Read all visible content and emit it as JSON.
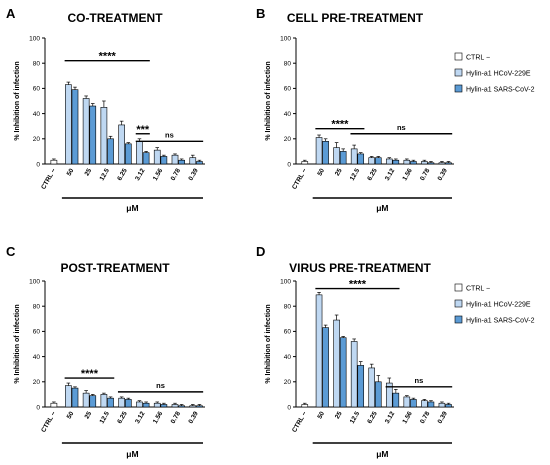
{
  "colors": {
    "ctrl": "#ffffff",
    "hcov": "#bfd8f2",
    "sars": "#5b9bd5",
    "stroke": "#000000"
  },
  "legend_labels": [
    "CTRL −",
    "Hylin-a1 HCoV-229E",
    "Hylin-a1 SARS-CoV-2"
  ],
  "chart_data": [
    {
      "type": "bar",
      "letter": "A",
      "title": "CO-TREATMENT",
      "ylabel": "% Inhibition of infection",
      "xlabel": "μM",
      "ylim": [
        0,
        100
      ],
      "yticks": [
        "0",
        "20",
        "40",
        "60",
        "80",
        "100"
      ],
      "categories": [
        "CTRL −",
        "50",
        "25",
        "12.5",
        "6.25",
        "3.12",
        "1.56",
        "0.78",
        "0.39"
      ],
      "ctrl_value": 3,
      "ctrl_err": 1,
      "series": [
        {
          "name": "Hylin-a1 HCoV-229E",
          "values": [
            null,
            63,
            52,
            45,
            31,
            18,
            11,
            7,
            5
          ],
          "errors": [
            null,
            2,
            2,
            5,
            3,
            2,
            2,
            1,
            2
          ]
        },
        {
          "name": "Hylin-a1 SARS-CoV-2",
          "values": [
            null,
            59,
            46,
            20,
            16,
            9,
            6,
            3,
            2
          ],
          "errors": [
            null,
            2,
            2,
            2,
            1,
            1,
            1,
            1,
            1
          ]
        }
      ],
      "brackets": [
        {
          "label": "****",
          "from": 1,
          "to": 5,
          "y": 82
        },
        {
          "label": "***",
          "from": 5,
          "to": 5,
          "y": 24
        },
        {
          "label": "ns",
          "from": 5,
          "to": 8,
          "y": 18
        }
      ],
      "legend": false
    },
    {
      "type": "bar",
      "letter": "B",
      "title": "CELL PRE-TREATMENT",
      "ylabel": "% Inhibition of infection",
      "xlabel": "μM",
      "ylim": [
        0,
        100
      ],
      "yticks": [
        "0",
        "20",
        "40",
        "60",
        "80",
        "100"
      ],
      "categories": [
        "CTRL −",
        "50",
        "25",
        "12.5",
        "6.25",
        "3.12",
        "1.56",
        "0.78",
        "0.39"
      ],
      "ctrl_value": 2,
      "ctrl_err": 1,
      "series": [
        {
          "name": "Hylin-a1 HCoV-229E",
          "values": [
            null,
            21,
            13,
            12,
            5,
            4,
            3,
            2,
            1
          ],
          "errors": [
            null,
            2,
            4,
            3,
            1,
            1,
            1,
            1,
            1
          ]
        },
        {
          "name": "Hylin-a1 SARS-CoV-2",
          "values": [
            null,
            18,
            10,
            8,
            5,
            3,
            2,
            1,
            1
          ],
          "errors": [
            null,
            2,
            2,
            1,
            1,
            1,
            1,
            1,
            1
          ]
        }
      ],
      "brackets": [
        {
          "label": "****",
          "from": 1,
          "to": 3,
          "y": 28
        },
        {
          "label": "ns",
          "from": 3,
          "to": 8,
          "y": 24
        }
      ],
      "legend": true
    },
    {
      "type": "bar",
      "letter": "C",
      "title": "POST-TREATMENT",
      "ylabel": "% Inhibition of infection",
      "xlabel": "μM",
      "ylim": [
        0,
        100
      ],
      "yticks": [
        "0",
        "20",
        "40",
        "60",
        "80",
        "100"
      ],
      "categories": [
        "CTRL −",
        "50",
        "25",
        "12.5",
        "6.25",
        "3.12",
        "1.56",
        "0.78",
        "0.39"
      ],
      "ctrl_value": 3,
      "ctrl_err": 1,
      "series": [
        {
          "name": "Hylin-a1 HCoV-229E",
          "values": [
            null,
            17,
            11,
            10,
            7,
            4,
            3,
            2,
            1
          ],
          "errors": [
            null,
            2,
            2,
            1,
            1,
            1,
            1,
            1,
            1
          ]
        },
        {
          "name": "Hylin-a1 SARS-CoV-2",
          "values": [
            null,
            15,
            9,
            7,
            6,
            3,
            2,
            1,
            1
          ],
          "errors": [
            null,
            1,
            1,
            1,
            1,
            1,
            1,
            1,
            1
          ]
        }
      ],
      "brackets": [
        {
          "label": "****",
          "from": 1,
          "to": 3,
          "y": 23
        },
        {
          "label": "ns",
          "from": 4,
          "to": 8,
          "y": 12
        }
      ],
      "legend": false
    },
    {
      "type": "bar",
      "letter": "D",
      "title": "VIRUS PRE-TREATMENT",
      "ylabel": "% Inhibition of infection",
      "xlabel": "μM",
      "ylim": [
        0,
        100
      ],
      "yticks": [
        "0",
        "20",
        "40",
        "60",
        "80",
        "100"
      ],
      "categories": [
        "CTRL −",
        "50",
        "25",
        "12.5",
        "6.25",
        "3.12",
        "1.56",
        "0.78",
        "0.39"
      ],
      "ctrl_value": 2,
      "ctrl_err": 1,
      "series": [
        {
          "name": "Hylin-a1 HCoV-229E",
          "values": [
            null,
            89,
            69,
            52,
            31,
            19,
            8,
            5,
            3
          ],
          "errors": [
            null,
            2,
            4,
            2,
            3,
            4,
            1,
            1,
            1
          ]
        },
        {
          "name": "Hylin-a1 SARS-CoV-2",
          "values": [
            null,
            63,
            55,
            33,
            20,
            11,
            6,
            4,
            2
          ],
          "errors": [
            null,
            2,
            1,
            3,
            5,
            3,
            1,
            1,
            1
          ]
        }
      ],
      "brackets": [
        {
          "label": "****",
          "from": 1,
          "to": 5,
          "y": 94
        },
        {
          "label": "ns",
          "from": 5,
          "to": 8,
          "y": 16
        }
      ],
      "legend": true
    }
  ]
}
